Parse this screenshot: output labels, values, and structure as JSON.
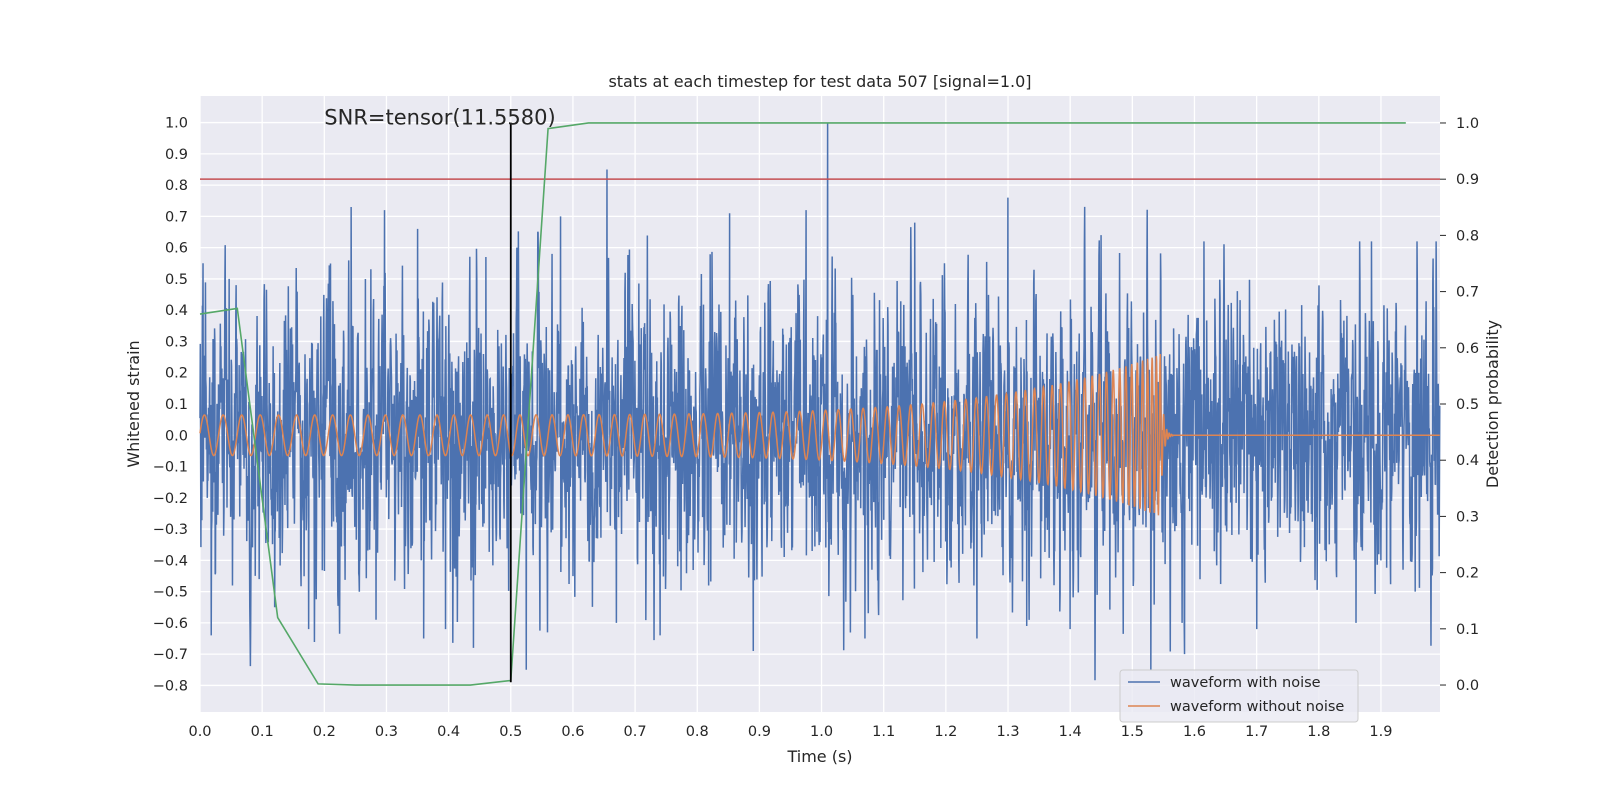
{
  "chart_data": {
    "type": "line",
    "title": "stats at each timestep for test data 507 [signal=1.0]",
    "xlabel": "Time (s)",
    "ylabel": "Whitened strain",
    "y2label": "Detection probability",
    "xlim": [
      0.0,
      1.995
    ],
    "ylim": [
      -0.885,
      1.085
    ],
    "y2lim": [
      -0.048,
      1.048
    ],
    "x_ticks": [
      "0.0",
      "0.1",
      "0.2",
      "0.3",
      "0.4",
      "0.5",
      "0.6",
      "0.7",
      "0.8",
      "0.9",
      "1.0",
      "1.1",
      "1.2",
      "1.3",
      "1.4",
      "1.5",
      "1.6",
      "1.7",
      "1.8",
      "1.9"
    ],
    "y_ticks": [
      "1.0",
      "0.9",
      "0.8",
      "0.7",
      "0.6",
      "0.5",
      "0.4",
      "0.3",
      "0.2",
      "0.1",
      "0.0",
      "−0.1",
      "−0.2",
      "−0.3",
      "−0.4",
      "−0.5",
      "−0.6",
      "−0.7",
      "−0.8"
    ],
    "y2_ticks": [
      "1.0",
      "0.9",
      "0.8",
      "0.7",
      "0.6",
      "0.5",
      "0.4",
      "0.3",
      "0.2",
      "0.1",
      "0.0"
    ],
    "annotation": {
      "text": "SNR=tensor(11.5580)",
      "x": 0.2,
      "y": 1.0
    },
    "vline": {
      "x": 0.5,
      "y_from": -0.79,
      "y_to": 1.0,
      "color": "#000000"
    },
    "threshold": {
      "value": 0.9,
      "axis": "y2",
      "color": "#c44e52"
    },
    "detection_probability": {
      "name": "Detection probability",
      "color": "#55a868",
      "x": [
        0.0,
        0.06,
        0.125,
        0.19,
        0.25,
        0.31,
        0.375,
        0.435,
        0.5,
        0.56,
        0.625,
        0.69,
        0.75,
        0.81,
        0.875,
        0.94,
        1.0,
        1.1,
        1.2,
        1.3,
        1.4,
        1.5,
        1.6,
        1.7,
        1.8,
        1.94
      ],
      "values": [
        0.66,
        0.67,
        0.12,
        0.002,
        0.0,
        0.0,
        0.0,
        0.0,
        0.008,
        0.99,
        1.0,
        1.0,
        1.0,
        1.0,
        1.0,
        1.0,
        1.0,
        1.0,
        1.0,
        1.0,
        1.0,
        1.0,
        1.0,
        1.0,
        1.0,
        1.0
      ]
    },
    "series": [
      {
        "name": "waveform with noise",
        "color": "#4c72b0",
        "description": "Whitened noisy strain, sampled at 2048 Hz, amplitude roughly −0.8 to 1.0",
        "sample_rate": 2048,
        "noise_sigma": 0.25,
        "peaks": [
          {
            "x": 0.005,
            "y": 0.55
          },
          {
            "x": 0.018,
            "y": -0.64
          },
          {
            "x": 0.047,
            "y": 0.5
          },
          {
            "x": 0.08,
            "y": -0.55
          },
          {
            "x": 0.12,
            "y": -0.55
          },
          {
            "x": 0.175,
            "y": -0.62
          },
          {
            "x": 0.243,
            "y": 0.73
          },
          {
            "x": 0.283,
            "y": -0.59
          },
          {
            "x": 0.297,
            "y": 0.72
          },
          {
            "x": 0.35,
            "y": 0.66
          },
          {
            "x": 0.36,
            "y": -0.65
          },
          {
            "x": 0.395,
            "y": -0.62
          },
          {
            "x": 0.44,
            "y": -0.68
          },
          {
            "x": 0.46,
            "y": 0.57
          },
          {
            "x": 0.51,
            "y": 0.6
          },
          {
            "x": 0.525,
            "y": -0.75
          },
          {
            "x": 0.58,
            "y": 0.7
          },
          {
            "x": 0.655,
            "y": 0.85
          },
          {
            "x": 0.67,
            "y": -0.6
          },
          {
            "x": 0.74,
            "y": -0.64
          },
          {
            "x": 0.852,
            "y": 0.71
          },
          {
            "x": 0.89,
            "y": -0.69
          },
          {
            "x": 0.975,
            "y": 0.72
          },
          {
            "x": 1.01,
            "y": 1.0
          },
          {
            "x": 1.07,
            "y": -0.65
          },
          {
            "x": 1.15,
            "y": 0.68
          },
          {
            "x": 1.25,
            "y": -0.65
          },
          {
            "x": 1.3,
            "y": 0.76
          },
          {
            "x": 1.33,
            "y": -0.61
          },
          {
            "x": 1.4,
            "y": -0.62
          },
          {
            "x": 1.53,
            "y": -0.75
          },
          {
            "x": 1.58,
            "y": -0.6
          },
          {
            "x": 1.7,
            "y": -0.62
          },
          {
            "x": 1.86,
            "y": -0.6
          },
          {
            "x": 1.955,
            "y": -0.5
          }
        ]
      },
      {
        "name": "waveform without noise",
        "color": "#dd8452",
        "description": "Clean inspiral chirp signal ending near t=1.55 s",
        "amplitude_start": 0.065,
        "amplitude_peak": 0.26,
        "freq_start_hz": 33,
        "merger_time": 1.545,
        "ringdown_end": 1.565
      }
    ],
    "legend": {
      "position": "lower right",
      "entries": [
        "waveform with noise",
        "waveform without noise"
      ]
    },
    "grid": true
  }
}
